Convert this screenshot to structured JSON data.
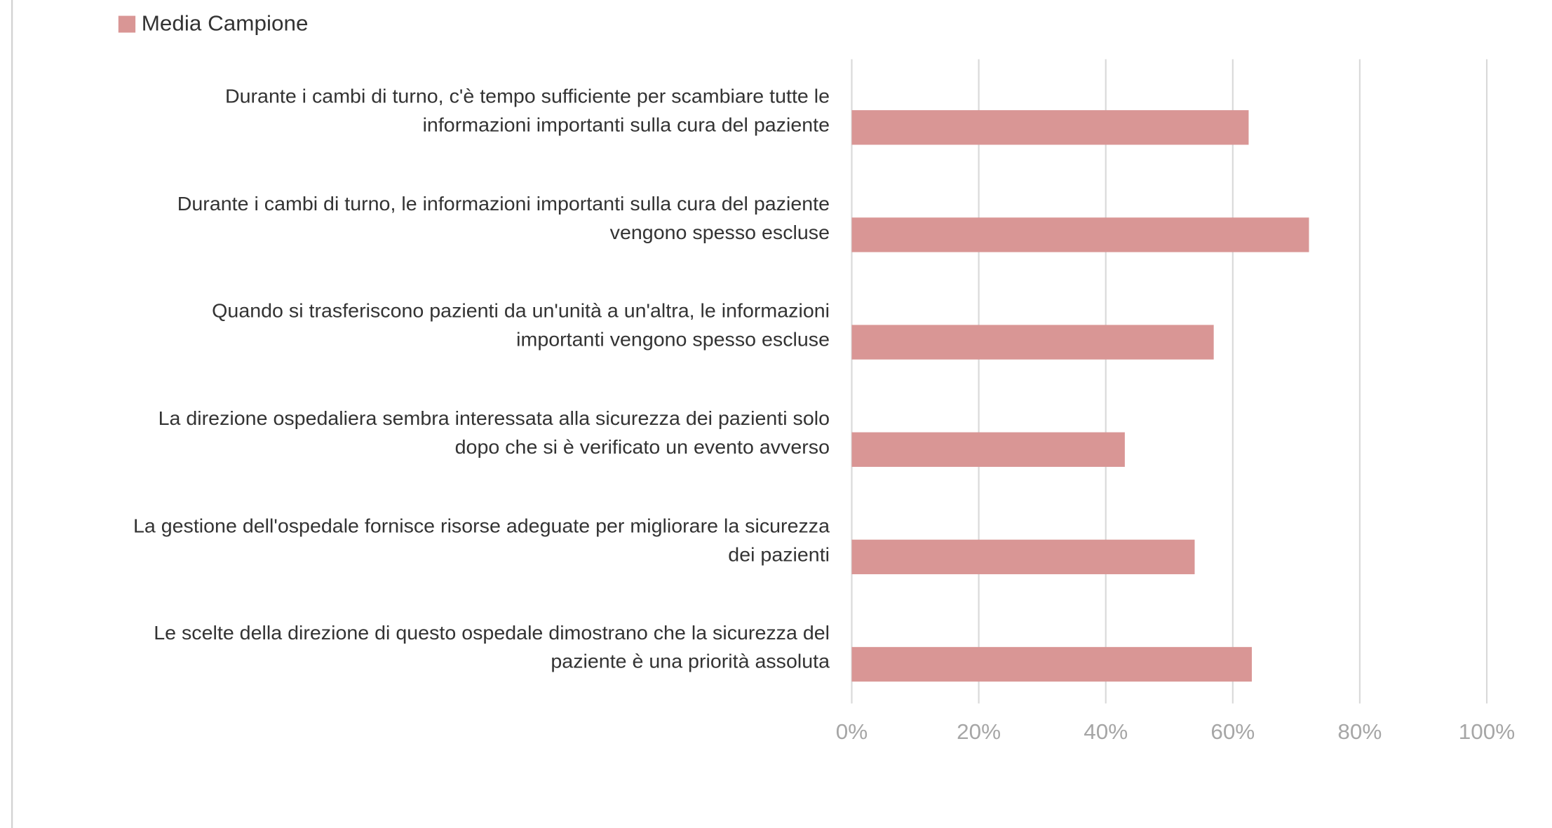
{
  "chart_data": {
    "type": "barh",
    "legend": "Media Campione",
    "legend_position": "top-left",
    "color": "#d99695",
    "categories": [
      "Durante i cambi di turno, c'è tempo sufficiente per scambiare tutte le\ninformazioni importanti sulla cura del paziente",
      "Durante i cambi di turno, le informazioni importanti sulla cura del paziente\nvengono spesso escluse",
      "Quando si trasferiscono pazienti da un'unità a un'altra, le informazioni\nimportanti vengono spesso escluse",
      "La direzione ospedaliera sembra interessata alla sicurezza dei pazienti solo\ndopo che si è verificato un evento avverso",
      "La gestione dell'ospedale fornisce risorse adeguate per migliorare la sicurezza\ndei pazienti",
      "Le scelte della direzione di questo ospedale dimostrano che la sicurezza del\npaziente è una priorità assoluta"
    ],
    "values": [
      62.5,
      72,
      57,
      43,
      54,
      63
    ],
    "xlim": [
      0,
      100
    ],
    "xticks": [
      {
        "value": 0,
        "label": "0%"
      },
      {
        "value": 20,
        "label": "20%"
      },
      {
        "value": 40,
        "label": "40%"
      },
      {
        "value": 60,
        "label": "60%"
      },
      {
        "value": 80,
        "label": "80%"
      },
      {
        "value": 100,
        "label": "100%"
      }
    ],
    "grid": true
  }
}
